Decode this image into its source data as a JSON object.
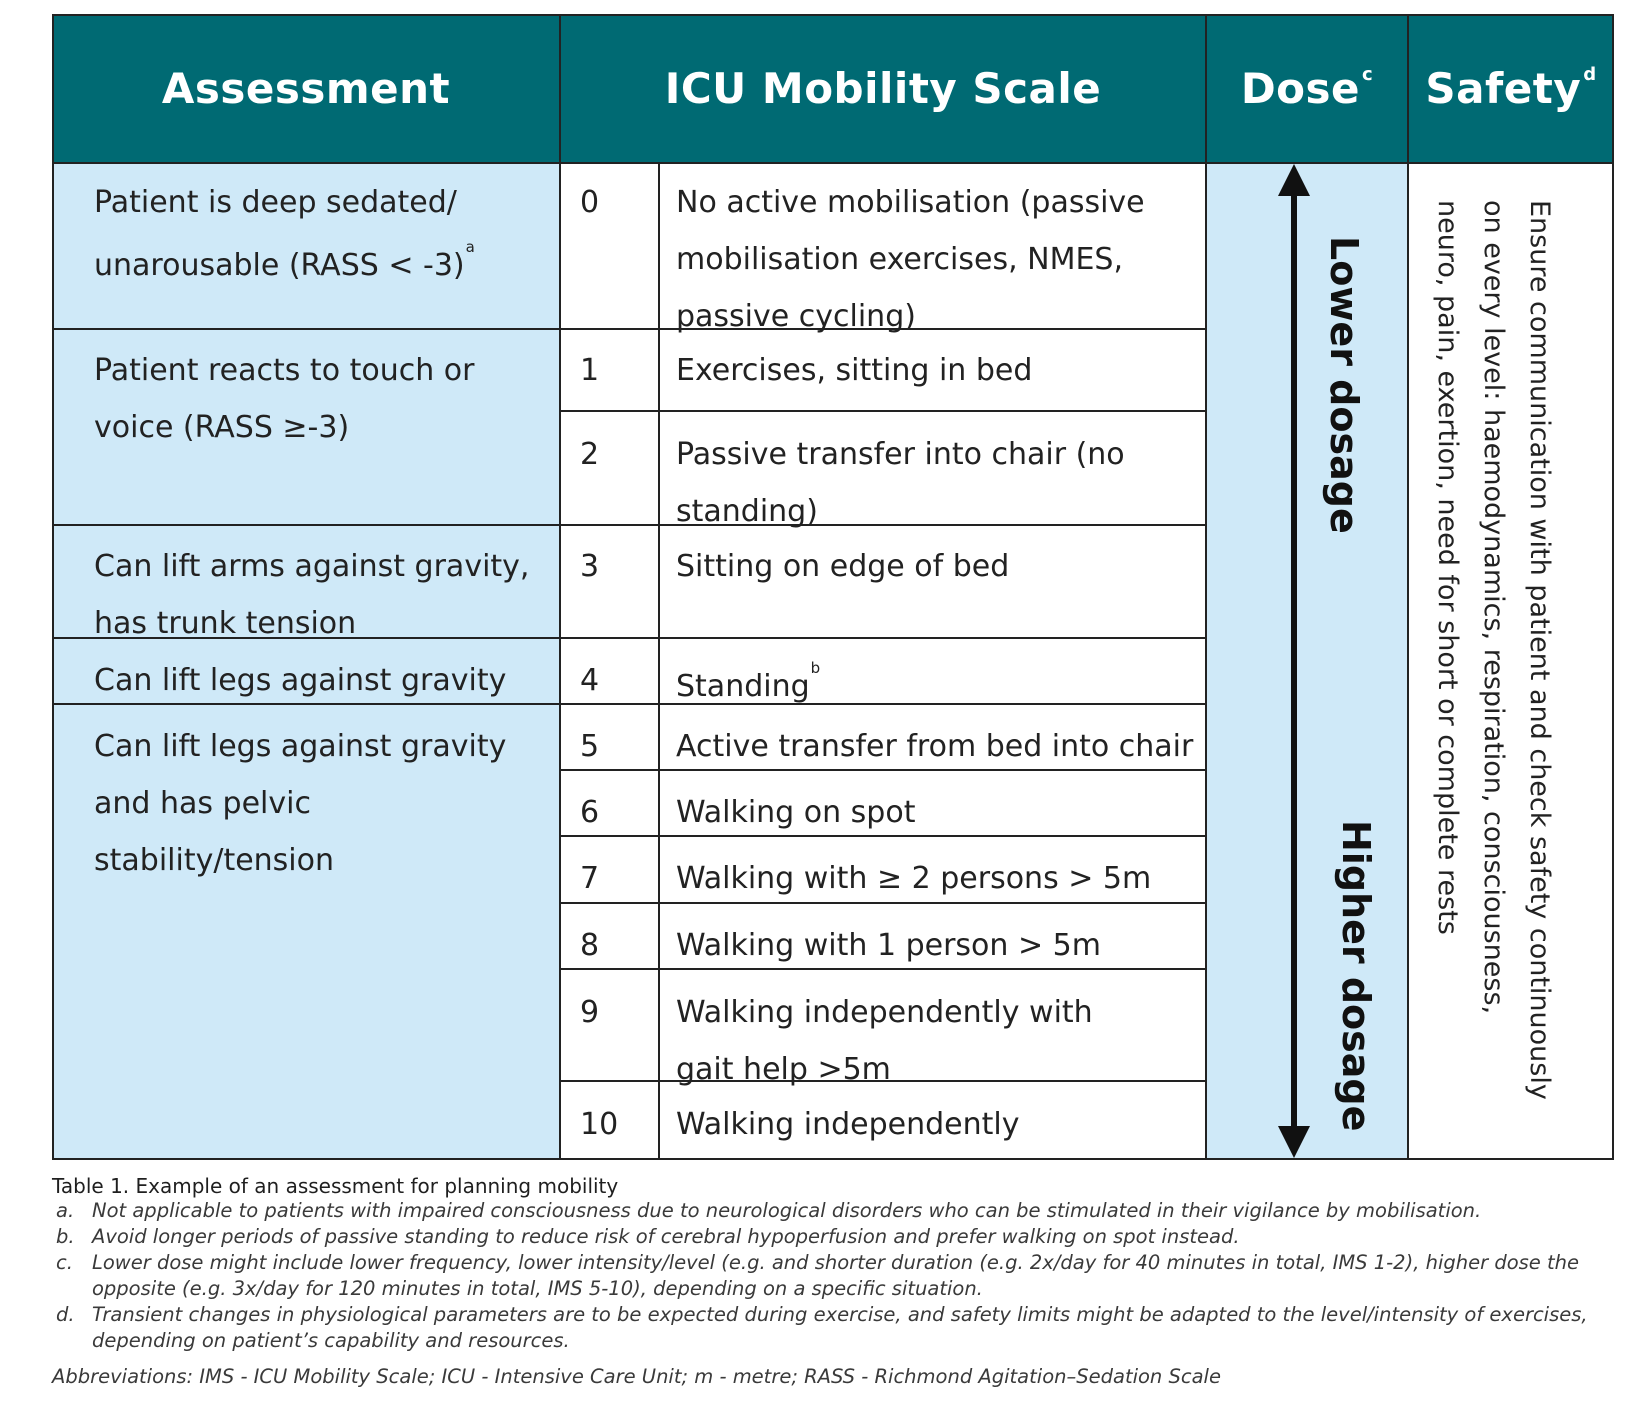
{
  "headers": {
    "assessment": "Assessment",
    "scale": "ICU Mobility Scale",
    "dose": "Dose",
    "dose_sup": "c",
    "safety": "Safety",
    "safety_sup": "d"
  },
  "assessments": [
    {
      "text": "Patient is deep sedated/ unarousable (RASS < -3)",
      "sup": "a"
    },
    {
      "text": "Patient reacts to touch or voice (RASS ≥-3)",
      "sup": ""
    },
    {
      "text": "Can lift arms against gravity, has trunk tension",
      "sup": ""
    },
    {
      "text": "Can lift legs against gravity",
      "sup": ""
    },
    {
      "text": "Can lift legs against gravity and has pelvic stability/tension",
      "sup": ""
    }
  ],
  "levels": [
    {
      "num": "0",
      "desc": "No active mobilisation (passive mobilisation exercises, NMES, passive cycling)",
      "sup": ""
    },
    {
      "num": "1",
      "desc": "Exercises, sitting in bed",
      "sup": ""
    },
    {
      "num": "2",
      "desc": "Passive transfer into chair (no standing)",
      "sup": ""
    },
    {
      "num": "3",
      "desc": "Sitting on edge of bed",
      "sup": ""
    },
    {
      "num": "4",
      "desc": "Standing",
      "sup": "b"
    },
    {
      "num": "5",
      "desc": "Active transfer from bed into chair",
      "sup": ""
    },
    {
      "num": "6",
      "desc": "Walking on spot",
      "sup": ""
    },
    {
      "num": "7",
      "desc": "Walking with ≥ 2 persons > 5m",
      "sup": ""
    },
    {
      "num": "8",
      "desc": "Walking with 1 person > 5m",
      "sup": ""
    },
    {
      "num": "9",
      "desc": "Walking independently with gait help >5m",
      "sup": ""
    },
    {
      "num": "10",
      "desc": "Walking independently",
      "sup": ""
    }
  ],
  "dose": {
    "lower": "Lower dosage",
    "higher": "Higher dosage",
    "arrow_icon": "double-headed-vertical-arrow"
  },
  "safety_text": "Ensure communication with patient and check safety continuously on every level: haemodynamics, respiration, consciousness, neuro, pain, exertion, need for short or complete rests",
  "caption": "Table 1. Example of an assessment for planning mobility",
  "footnotes": [
    {
      "marker": "a.",
      "text": "Not applicable to patients with impaired consciousness due to neurological disorders who can be stimulated in their vigilance by mobilisation."
    },
    {
      "marker": "b.",
      "text": "Avoid longer periods of passive standing to reduce risk of cerebral hypoperfusion and prefer walking on spot instead."
    },
    {
      "marker": "c.",
      "text": "Lower dose might include lower frequency, lower intensity/level (e.g. and shorter duration (e.g. 2x/day for 40 minutes in total, IMS 1-2), higher dose the opposite (e.g. 3x/day for 120 minutes in total, IMS 5-10), depending on a specific situation."
    },
    {
      "marker": "d.",
      "text": "Transient changes in physiological parameters are to be expected during exercise, and safety limits might be adapted to the level/intensity of exercises, depending on patient’s capability and resources."
    }
  ],
  "abbreviations": "Abbreviations: IMS - ICU Mobility Scale; ICU - Intensive Care Unit; m - metre; RASS - Richmond Agitation–Sedation Scale",
  "colors": {
    "header_bg": "#006a73",
    "light_blue": "#cfe9f8",
    "line": "#222222"
  }
}
